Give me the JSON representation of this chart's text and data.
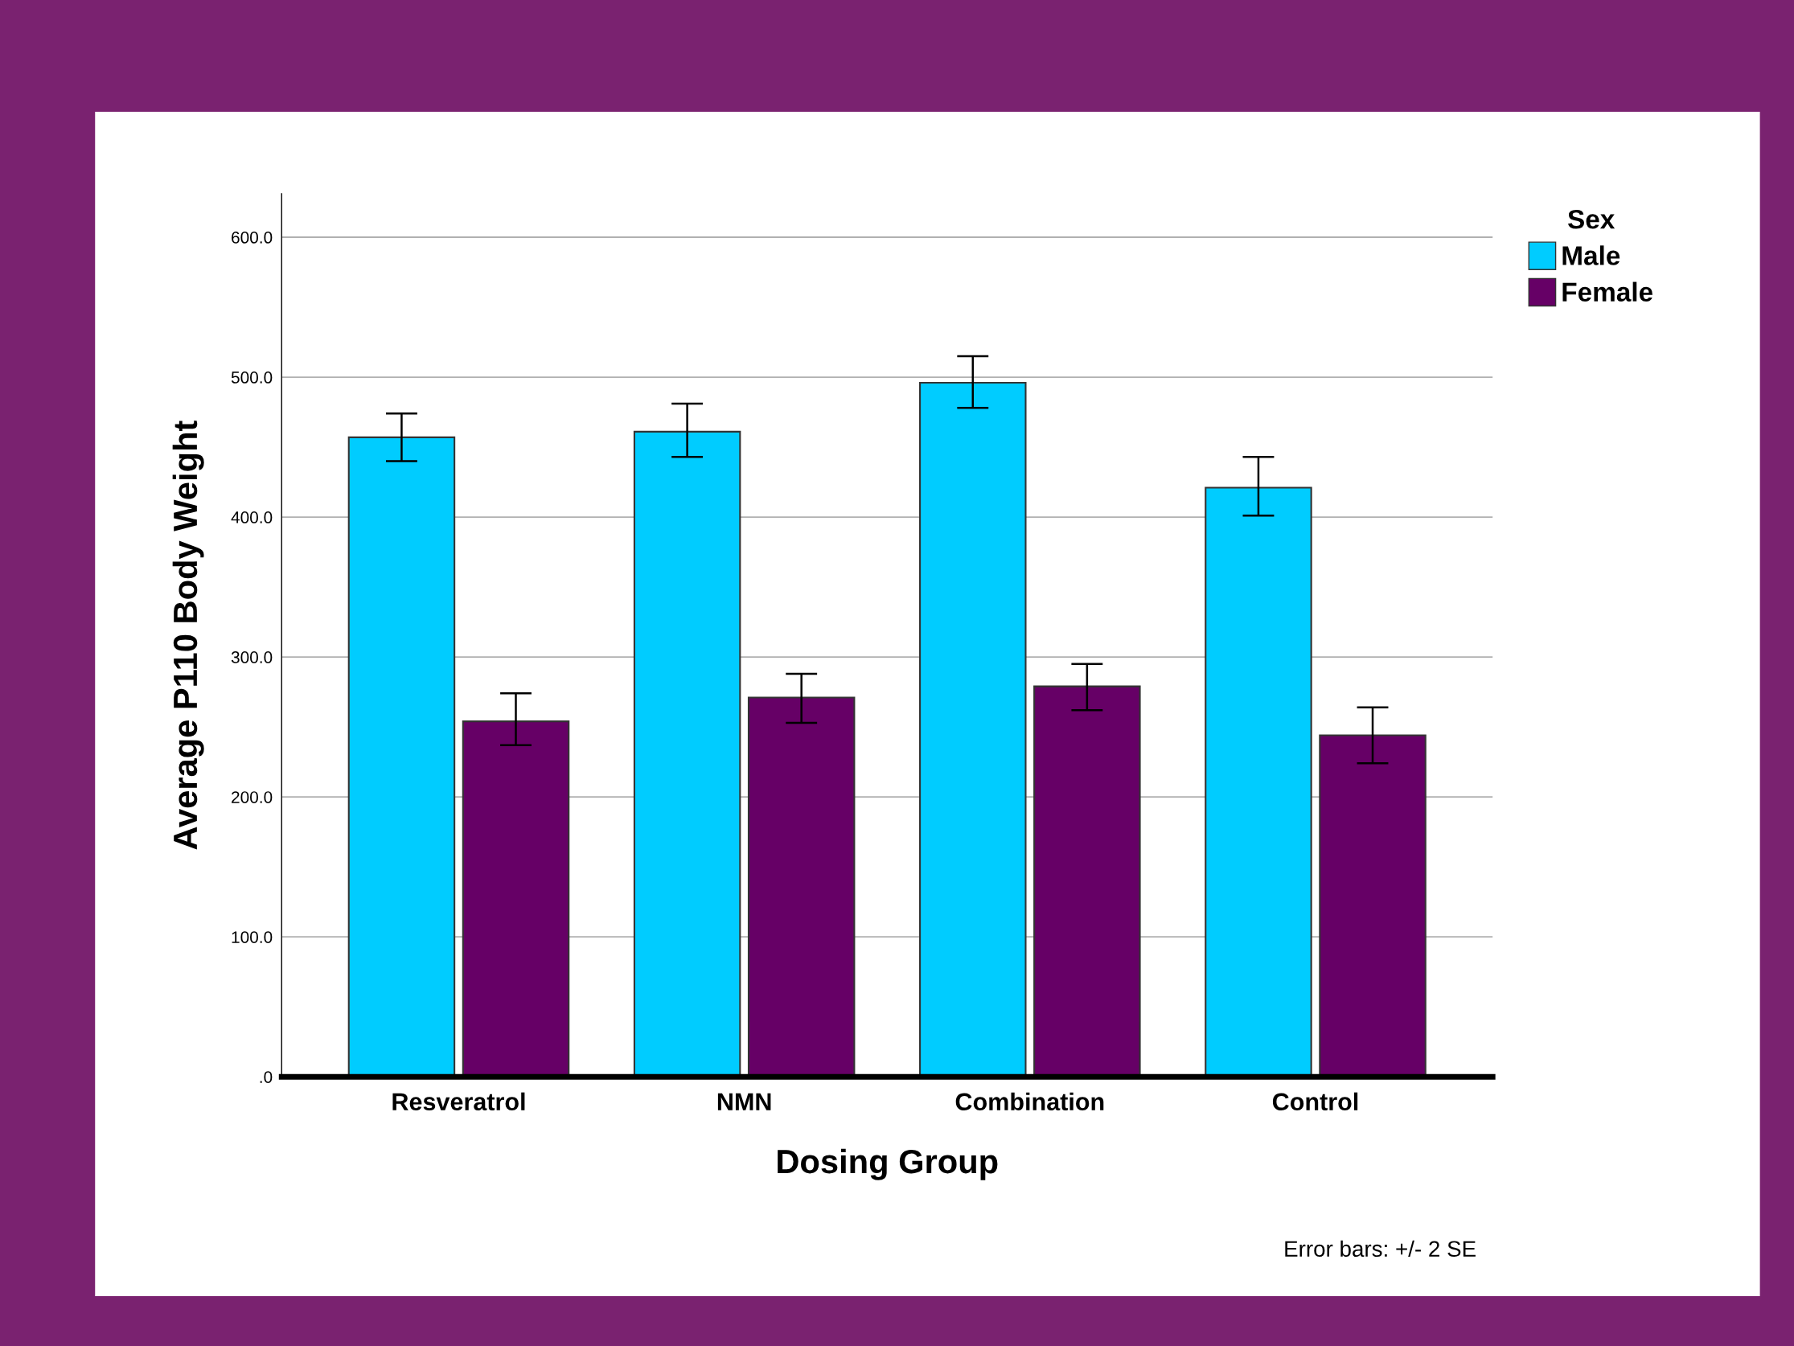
{
  "chart_data": {
    "type": "bar",
    "xlabel": "Dosing Group",
    "ylabel": "Average P110 Body Weight",
    "legend_title": "Sex",
    "categories": [
      "Resveratrol",
      "NMN",
      "Combination",
      "Control"
    ],
    "series": [
      {
        "name": "Male",
        "color": "#00ccff",
        "values": [
          457,
          461,
          496,
          421
        ],
        "errors": [
          [
            440,
            474
          ],
          [
            443,
            481
          ],
          [
            478,
            515
          ],
          [
            401,
            443
          ]
        ]
      },
      {
        "name": "Female",
        "color": "#660066",
        "values": [
          254,
          271,
          279,
          244
        ],
        "errors": [
          [
            237,
            274
          ],
          [
            253,
            288
          ],
          [
            262,
            295
          ],
          [
            224,
            264
          ]
        ]
      }
    ],
    "ylim": [
      0,
      631
    ],
    "yticks": [
      {
        "value": 0,
        "label": ".0"
      },
      {
        "value": 100,
        "label": "100.0"
      },
      {
        "value": 200,
        "label": "200.0"
      },
      {
        "value": 300,
        "label": "300.0"
      },
      {
        "value": 400,
        "label": "400.0"
      },
      {
        "value": 500,
        "label": "500.0"
      },
      {
        "value": 600,
        "label": "600.0"
      }
    ],
    "grid": "y",
    "legend": "top right",
    "annotations": [
      "Error bars: +/- 2 SE"
    ]
  }
}
